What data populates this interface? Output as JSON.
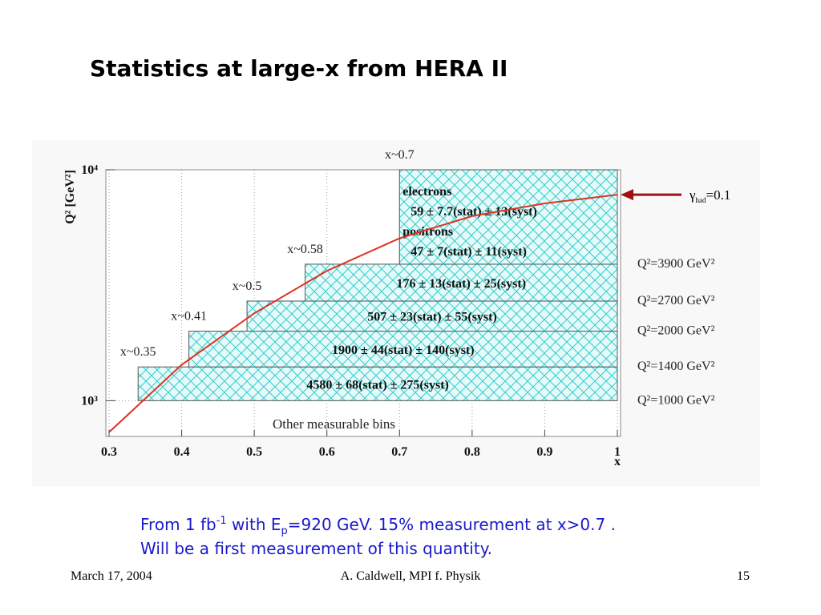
{
  "title": "Statistics at large-x from HERA II",
  "chart_data": {
    "type": "bin-plane",
    "x_label": "x",
    "y_label": "Q² [GeV²]",
    "xlim": [
      0.3,
      1
    ],
    "xticks": [
      0.3,
      0.4,
      0.5,
      0.6,
      0.7,
      0.8,
      0.9,
      1
    ],
    "ylim": [
      700,
      10000
    ],
    "log_y": true,
    "yticks": [
      {
        "value": 1000,
        "label": "10³"
      },
      {
        "value": 10000,
        "label": "10⁴"
      }
    ],
    "grid": true,
    "color": "#33cccc",
    "bins": [
      {
        "x": [
          0.34,
          1
        ],
        "q2": [
          1000,
          1400
        ],
        "x_label": "x~0.35",
        "q2_label": "Q²=1000 GeV²",
        "text": [
          "4580 ± 68(stat) ± 275(syst)"
        ]
      },
      {
        "x": [
          0.41,
          1
        ],
        "q2": [
          1400,
          2000
        ],
        "x_label": "x~0.41",
        "q2_label": "Q²=1400 GeV²",
        "text": [
          "1900 ± 44(stat) ± 140(syst)"
        ]
      },
      {
        "x": [
          0.49,
          1
        ],
        "q2": [
          2000,
          2700
        ],
        "x_label": "x~0.5",
        "q2_label": "Q²=2000 GeV²",
        "text": [
          "507 ± 23(stat) ± 55(syst)"
        ]
      },
      {
        "x": [
          0.57,
          1
        ],
        "q2": [
          2700,
          3900
        ],
        "x_label": "x~0.58",
        "q2_label": "Q²=2700 GeV²",
        "text": [
          "176 ± 13(stat) ± 25(syst)"
        ]
      },
      {
        "x": [
          0.7,
          1
        ],
        "q2": [
          3900,
          10000
        ],
        "x_label": "x~0.7",
        "q2_label": "Q²=3900 GeV²",
        "text": [
          "electrons",
          "59 ± 7.7(stat) ± 13(syst)",
          "positrons",
          "47 ± 7(stat) ± 11(syst)"
        ]
      }
    ],
    "curve": {
      "color": "#e03020",
      "x": [
        0.3,
        0.4,
        0.5,
        0.6,
        0.7,
        0.8,
        0.9,
        1
      ],
      "q2": [
        730,
        1430,
        2390,
        3650,
        5050,
        6300,
        7150,
        7800
      ],
      "label_symbol": "γ",
      "label_sub": "had",
      "label_rest": "=0.1"
    },
    "other_bins_label": "Other measurable bins"
  },
  "note": {
    "line1": [
      "From 1 fb",
      "-1",
      " with E",
      "p",
      "=920 GeV.  15% measurement at x>0.7 ."
    ],
    "line2": "Will be a first measurement of this quantity."
  },
  "footer": {
    "date": "March 17, 2004",
    "author": "A. Caldwell, MPI f. Physik",
    "page": "15"
  }
}
